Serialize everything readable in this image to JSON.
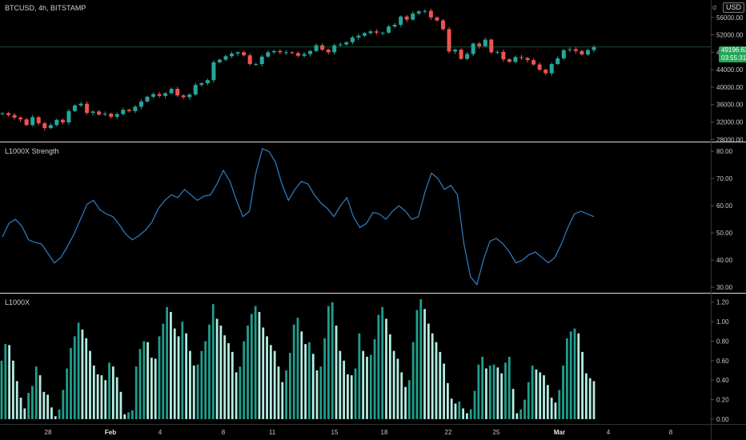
{
  "header": {
    "symbol_line": "BTCUSD, 4h, BITSTAMP",
    "currency_button": "USD",
    "corner_glyph": "α"
  },
  "last_price": {
    "value": "49196.63",
    "countdown": "03:55:31"
  },
  "colors": {
    "background": "#000000",
    "up_candle": "#26a69a",
    "down_candle": "#ef5350",
    "strength_line": "#2f80c8",
    "hist_dark": "#1f9e8c",
    "hist_light": "#b3ece0",
    "divider": "#dddddd",
    "price_line": "#26a65b"
  },
  "panes": [
    {
      "id": "price",
      "title": "",
      "ticks": [
        "56000.00",
        "52000.00",
        "48000.00",
        "44000.00",
        "40000.00",
        "36000.00",
        "32000.00",
        "28000.00"
      ]
    },
    {
      "id": "strength",
      "title": "L1000X Strength",
      "ticks": [
        "80.00",
        "70.00",
        "60.00",
        "50.00",
        "40.00",
        "30.00"
      ]
    },
    {
      "id": "l1000x",
      "title": "L1000X",
      "ticks": [
        "1.20",
        "1.00",
        "0.80",
        "0.60",
        "0.40",
        "0.20",
        "0.00"
      ]
    }
  ],
  "x_axis": {
    "labels": [
      "28",
      "Feb",
      "4",
      "8",
      "11",
      "15",
      "18",
      "22",
      "25",
      "Mar",
      "4",
      "8"
    ]
  },
  "chart_data": [
    {
      "type": "candlestick",
      "title": "BTCUSD, 4h, BITSTAMP",
      "ylim": [
        27500,
        60000
      ],
      "close": [
        34000,
        33600,
        33000,
        32600,
        31300,
        33100,
        31700,
        30600,
        31300,
        32500,
        31900,
        34500,
        35800,
        36200,
        34100,
        34400,
        33700,
        33900,
        33200,
        33800,
        34800,
        34500,
        35500,
        36700,
        37800,
        38400,
        38000,
        38600,
        39600,
        38100,
        37700,
        38300,
        40500,
        40900,
        41600,
        45700,
        46300,
        47100,
        47700,
        48000,
        47300,
        45300,
        45300,
        47000,
        48000,
        48300,
        48000,
        48000,
        47800,
        47200,
        47600,
        48300,
        49600,
        48600,
        48000,
        49600,
        49800,
        50300,
        51400,
        51800,
        52400,
        52800,
        52500,
        52500,
        53900,
        54300,
        56200,
        55500,
        56900,
        57400,
        57500,
        56000,
        55300,
        53300,
        48200,
        48600,
        46500,
        47600,
        50000,
        49400,
        50900,
        48000,
        48100,
        46400,
        45800,
        46900,
        46700,
        46200,
        45200,
        44000,
        43200,
        45300,
        46600,
        48500,
        48700,
        48300,
        47500,
        48500,
        49197
      ]
    },
    {
      "type": "line",
      "title": "L1000X Strength",
      "ylim": [
        28,
        83
      ],
      "values": [
        48.5,
        53.5,
        55,
        52.5,
        47.5,
        46.5,
        46,
        42.5,
        39,
        41,
        45,
        49.5,
        55,
        60.5,
        62,
        58.5,
        57,
        56,
        53,
        49.5,
        47.5,
        49,
        51,
        54,
        59,
        62,
        64,
        63,
        66,
        64,
        62,
        63.5,
        64,
        68,
        73,
        69,
        62,
        56,
        58,
        72,
        81,
        80,
        76,
        68,
        62,
        66,
        69,
        68,
        64,
        61,
        59,
        56,
        60,
        63,
        56,
        52,
        53.5,
        57.5,
        57,
        55,
        58,
        60,
        58,
        55,
        56,
        65,
        72,
        70,
        66,
        67.5,
        64,
        46,
        34,
        31,
        40,
        47,
        48,
        46,
        43,
        39,
        40,
        42,
        43,
        41,
        39,
        41,
        46,
        52,
        57,
        58,
        57,
        56
      ]
    },
    {
      "type": "bar",
      "title": "L1000X",
      "ylim": [
        -0.05,
        1.28
      ],
      "values": [
        0.6,
        0.77,
        0.76,
        0.6,
        0.39,
        0.22,
        0.11,
        0.27,
        0.34,
        0.54,
        0.45,
        0.28,
        0.25,
        0.12,
        0.03,
        0.1,
        0.3,
        0.52,
        0.73,
        0.85,
        0.99,
        0.92,
        0.83,
        0.7,
        0.55,
        0.46,
        0.45,
        0.4,
        0.58,
        0.54,
        0.43,
        0.28,
        0.05,
        0.07,
        0.09,
        0.54,
        0.72,
        0.8,
        0.79,
        0.63,
        0.62,
        0.85,
        0.98,
        1.15,
        1.1,
        0.93,
        0.85,
        1.0,
        0.88,
        0.7,
        0.55,
        0.56,
        0.7,
        0.8,
        0.97,
        1.18,
        1.03,
        0.96,
        0.86,
        0.78,
        0.69,
        0.48,
        0.54,
        0.8,
        0.96,
        1.08,
        1.16,
        1.1,
        0.94,
        0.85,
        0.76,
        0.7,
        0.54,
        0.38,
        0.5,
        0.68,
        0.97,
        1.04,
        0.9,
        0.77,
        0.79,
        0.67,
        0.5,
        0.54,
        0.83,
        1.16,
        1.2,
        0.96,
        0.7,
        0.6,
        0.46,
        0.45,
        0.52,
        0.88,
        0.7,
        0.64,
        0.66,
        0.82,
        1.07,
        1.15,
        1.03,
        0.87,
        0.7,
        0.62,
        0.48,
        0.33,
        0.4,
        0.79,
        1.12,
        1.23,
        1.13,
        0.98,
        0.88,
        0.79,
        0.69,
        0.57,
        0.37,
        0.21,
        0.16,
        0.18,
        0.11,
        0.06,
        0.1,
        0.29,
        0.56,
        0.64,
        0.52,
        0.55,
        0.56,
        0.53,
        0.47,
        0.58,
        0.64,
        0.31,
        0.06,
        0.1,
        0.2,
        0.38,
        0.55,
        0.51,
        0.48,
        0.45,
        0.35,
        0.22,
        0.17,
        0.3,
        0.55,
        0.83,
        0.9,
        0.93,
        0.88,
        0.69,
        0.47,
        0.42,
        0.39
      ]
    }
  ]
}
